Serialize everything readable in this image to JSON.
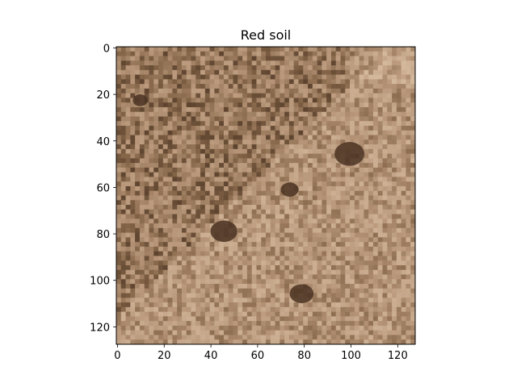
{
  "chart_data": {
    "type": "heatmap",
    "title": "Red soil",
    "xlabel": "",
    "ylabel": "",
    "image_shape": [
      128,
      128
    ],
    "xlim": [
      -0.5,
      127.5
    ],
    "ylim": [
      127.5,
      -0.5
    ],
    "x_ticks": [
      0,
      20,
      40,
      60,
      80,
      100,
      120
    ],
    "x_tick_labels": [
      "0",
      "20",
      "40",
      "60",
      "80",
      "100",
      "120"
    ],
    "y_ticks": [
      0,
      20,
      40,
      60,
      80,
      100,
      120
    ],
    "y_tick_labels": [
      "0",
      "20",
      "40",
      "60",
      "80",
      "100",
      "120"
    ],
    "grid": false,
    "legend": "none",
    "content": "photograph of reddish-brown soil clods, brighter texture on the left diagonal, darker fine soil toward the top-right",
    "colors": {
      "soil_dark": "#4a3322",
      "soil_mid": "#8a6a4c",
      "soil_light": "#b8977a",
      "soil_highlight": "#d4b89c",
      "axis": "#000000"
    }
  }
}
